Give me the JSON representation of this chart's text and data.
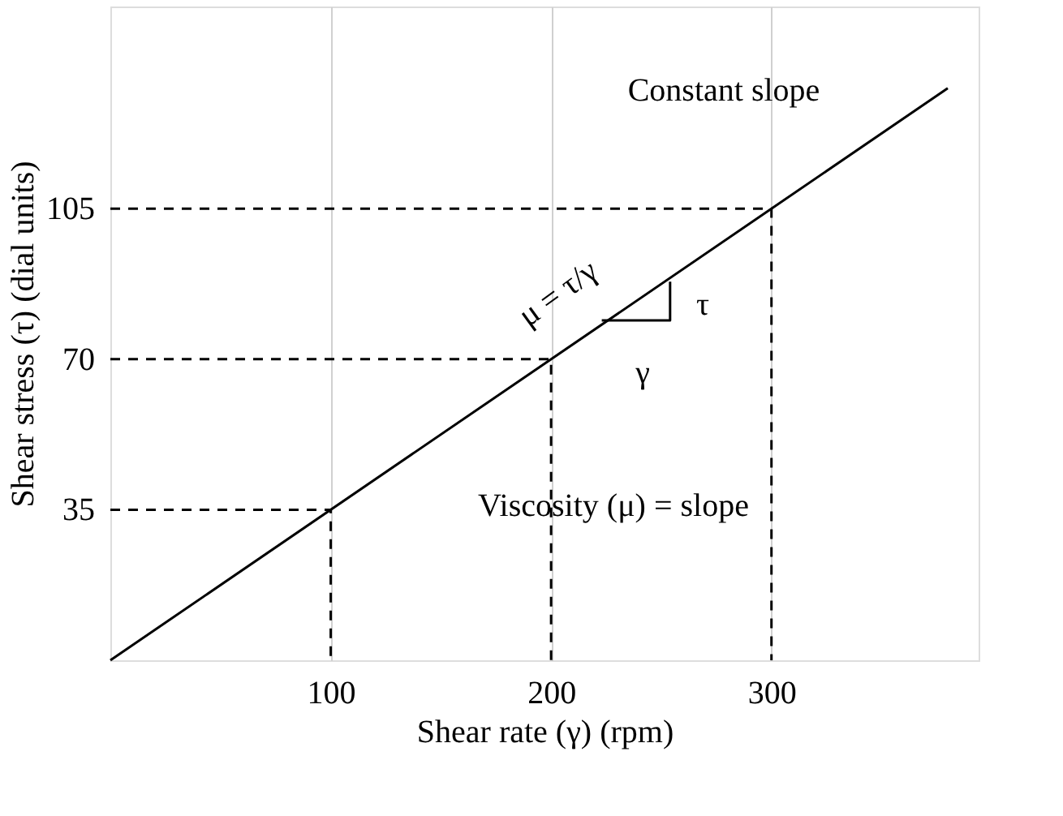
{
  "chart_data": {
    "type": "line",
    "xlabel": "Shear rate (γ) (rpm)",
    "ylabel": "Shear stress (τ) (dial units)",
    "xlim": [
      0,
      394
    ],
    "ylim": [
      0,
      152
    ],
    "xticks": [
      100,
      200,
      300
    ],
    "yticks": [
      35,
      70,
      105
    ],
    "grid": "x",
    "marker": "none",
    "series": [
      {
        "color": "#000000",
        "x": [
          0,
          380
        ],
        "values": [
          0,
          133
        ],
        "line_style": "solid"
      },
      {
        "color": "#000000",
        "x": [
          0,
          100,
          100
        ],
        "values": [
          35,
          35,
          0
        ],
        "line_style": "dashed"
      },
      {
        "color": "#000000",
        "x": [
          0,
          200,
          200
        ],
        "values": [
          70,
          70,
          0
        ],
        "line_style": "dashed"
      },
      {
        "color": "#000000",
        "x": [
          0,
          300,
          300
        ],
        "values": [
          105,
          105,
          0
        ],
        "line_style": "dashed"
      },
      {
        "color": "#000000",
        "x": [
          223,
          254,
          254
        ],
        "values": [
          79,
          79,
          88
        ],
        "line_style": "solid"
      }
    ],
    "annotations": [
      "Constant slope",
      "Viscosity (μ) = slope",
      "μ = τ/γ",
      "τ",
      "γ"
    ]
  }
}
